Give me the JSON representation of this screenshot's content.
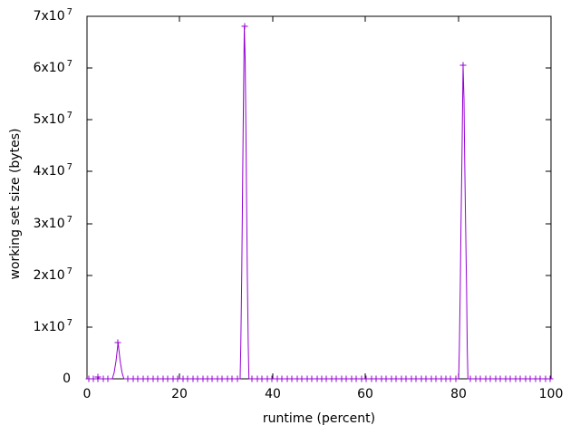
{
  "chart_data": {
    "type": "line",
    "title": "",
    "xlabel": "runtime (percent)",
    "ylabel": "working set size (bytes)",
    "xlim": [
      0,
      100
    ],
    "ylim": [
      0,
      70000000
    ],
    "grid": false,
    "legend": "none",
    "border": "full-box-mirrored-ticks",
    "xticks": [
      {
        "v": 0,
        "label": "0"
      },
      {
        "v": 20,
        "label": "20"
      },
      {
        "v": 40,
        "label": "40"
      },
      {
        "v": 60,
        "label": "60"
      },
      {
        "v": 80,
        "label": "80"
      },
      {
        "v": 100,
        "label": "100"
      }
    ],
    "yticks": [
      {
        "v": 0,
        "base": "0",
        "exp": ""
      },
      {
        "v": 10000000,
        "base": "1x10",
        "exp": "7"
      },
      {
        "v": 20000000,
        "base": "2x10",
        "exp": "7"
      },
      {
        "v": 30000000,
        "base": "3x10",
        "exp": "7"
      },
      {
        "v": 40000000,
        "base": "4x10",
        "exp": "7"
      },
      {
        "v": 50000000,
        "base": "5x10",
        "exp": "7"
      },
      {
        "v": 60000000,
        "base": "6x10",
        "exp": "7"
      },
      {
        "v": 70000000,
        "base": "7x10",
        "exp": "7"
      }
    ],
    "series": [
      {
        "color": "#9400d3",
        "marker": "plus",
        "points": [
          [
            0,
            0
          ],
          [
            2.2,
            0
          ],
          [
            2.4,
            400000
          ],
          [
            2.6,
            0
          ],
          [
            5.45,
            0
          ],
          [
            5.85,
            1200000
          ],
          [
            6.25,
            3400000
          ],
          [
            6.7,
            7000000
          ],
          [
            7.15,
            3400000
          ],
          [
            7.55,
            1200000
          ],
          [
            7.95,
            0
          ],
          [
            33.0,
            0
          ],
          [
            33.15,
            6600000
          ],
          [
            33.35,
            20200000
          ],
          [
            33.5,
            33900000
          ],
          [
            33.65,
            47900000
          ],
          [
            33.9,
            68000000
          ],
          [
            34.1,
            61300000
          ],
          [
            34.25,
            47900000
          ],
          [
            34.4,
            33900000
          ],
          [
            34.55,
            20200000
          ],
          [
            34.75,
            6600000
          ],
          [
            34.9,
            0
          ],
          [
            80.1,
            0
          ],
          [
            80.25,
            6000000
          ],
          [
            80.45,
            17800000
          ],
          [
            80.6,
            29500000
          ],
          [
            80.8,
            42100000
          ],
          [
            81.05,
            60500000
          ],
          [
            81.25,
            54000000
          ],
          [
            81.4,
            42100000
          ],
          [
            81.6,
            29500000
          ],
          [
            81.8,
            17800000
          ],
          [
            81.95,
            6000000
          ],
          [
            82.1,
            0
          ],
          [
            100,
            0
          ]
        ],
        "baseline_markers": {
          "start": 0.3,
          "interval": 1.07,
          "end": 99.9,
          "y": 0,
          "gaps": [
            [
              5.4,
              8.0
            ],
            [
              32.95,
              34.95
            ],
            [
              80.05,
              82.15
            ]
          ]
        },
        "peak_markers": [
          [
            2.4,
            400000
          ],
          [
            6.7,
            7000000
          ],
          [
            33.9,
            68000000
          ],
          [
            81.05,
            60500000
          ]
        ]
      }
    ]
  }
}
